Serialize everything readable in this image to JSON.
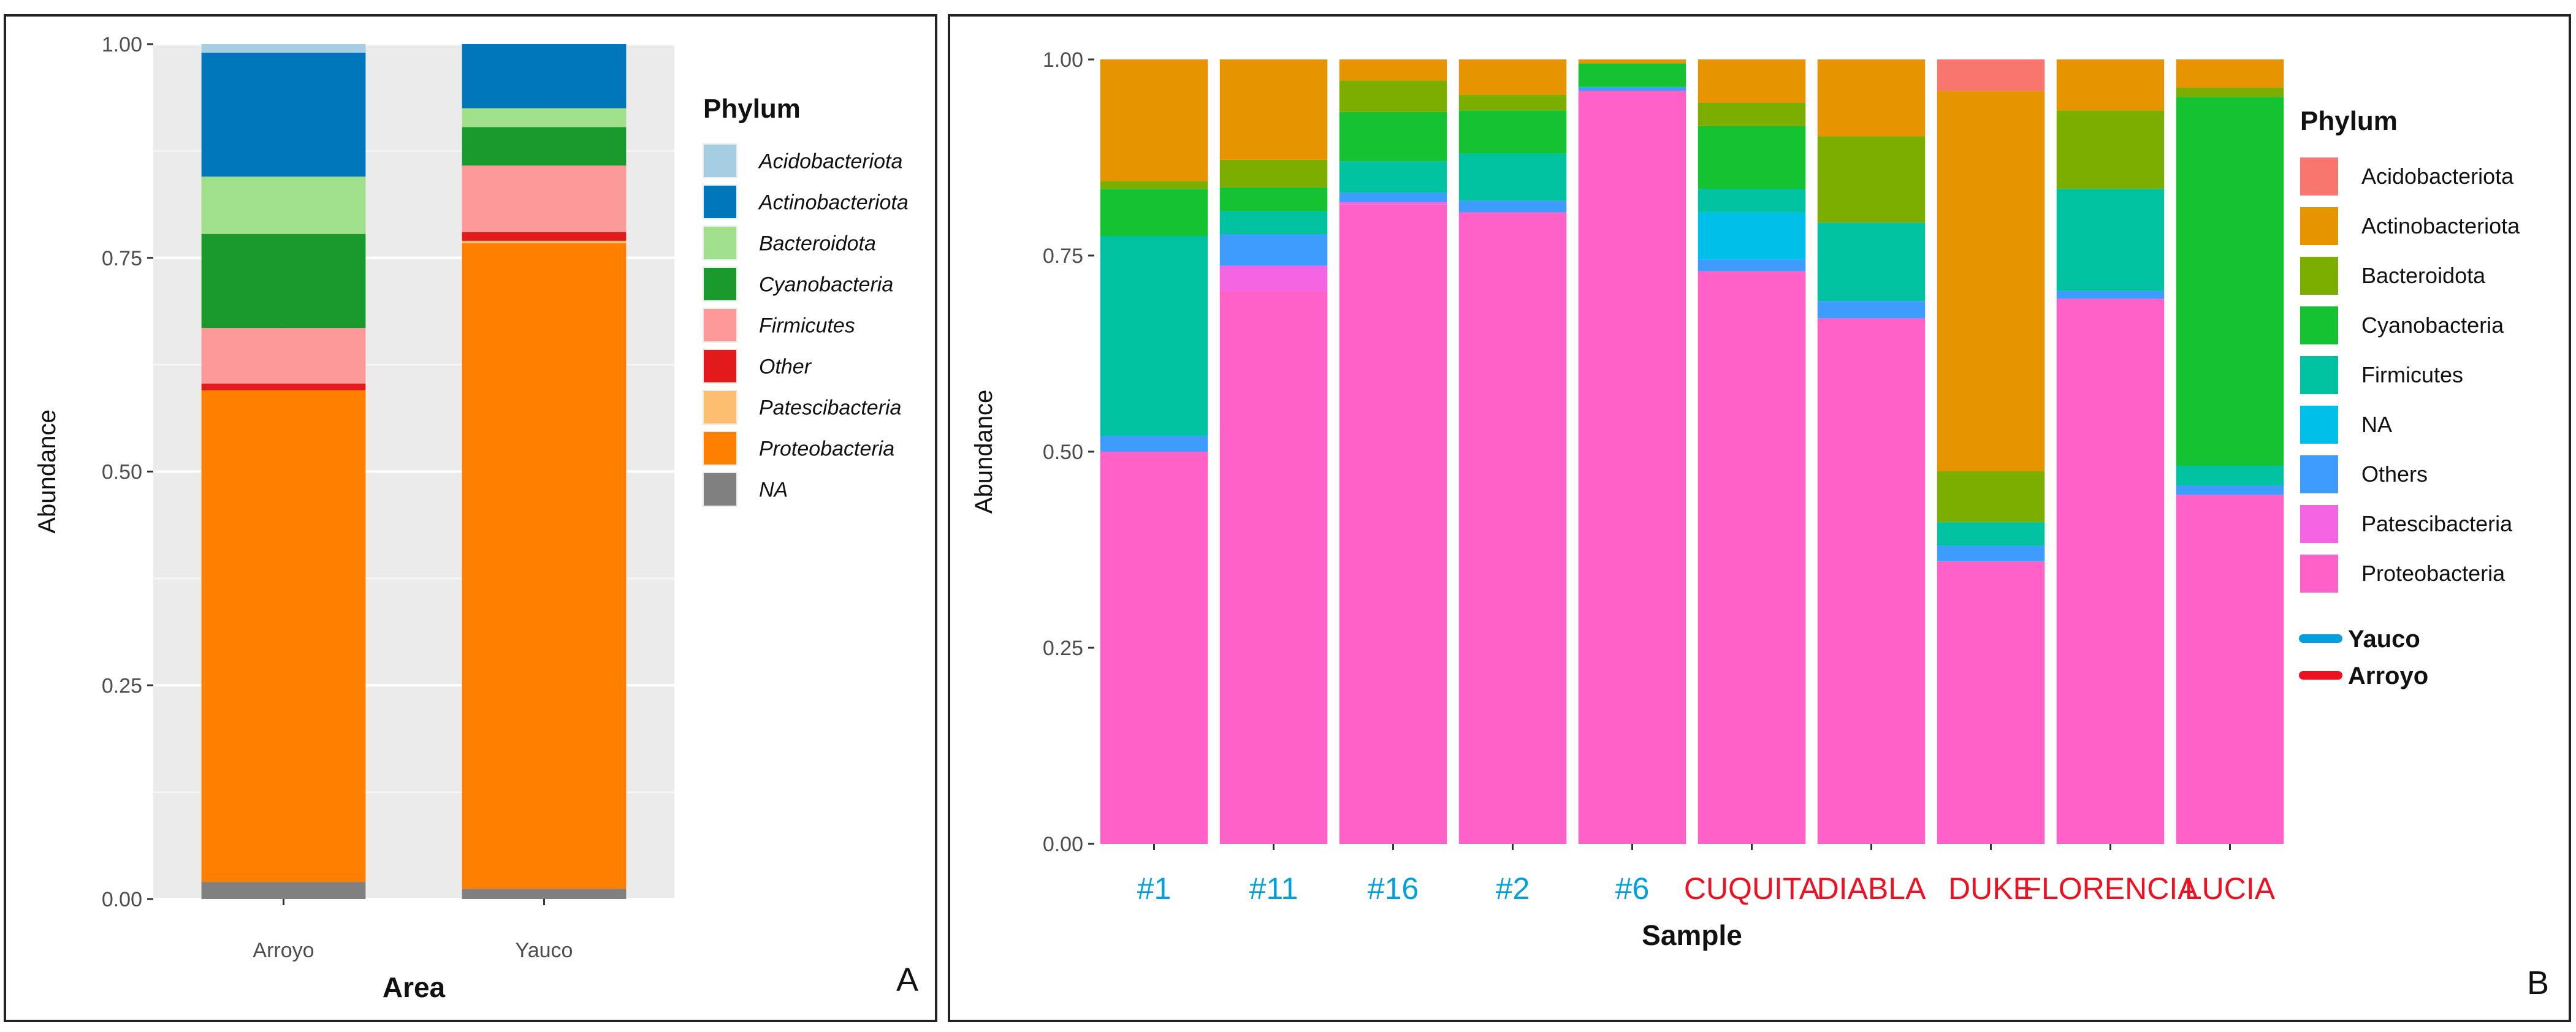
{
  "chart_data": [
    {
      "panel_label": "A",
      "type": "bar",
      "stacked": true,
      "xlabel": "Area",
      "ylabel": "Abundance",
      "ylim": [
        0,
        1
      ],
      "yticks": [
        "0.00",
        "0.25",
        "0.50",
        "0.75",
        "1.00"
      ],
      "categories": [
        "Arroyo",
        "Yauco"
      ],
      "legend_title": "Phylum",
      "legend": [
        "Acidobacteriota",
        "Actinobacteriota",
        "Bacteroidota",
        "Cyanobacteria",
        "Firmicutes",
        "Other",
        "Patescibacteria",
        "Proteobacteria",
        "NA"
      ],
      "series": [
        {
          "name": "NA",
          "color": "#808080",
          "values": [
            0.02,
            0.012
          ]
        },
        {
          "name": "Proteobacteria",
          "color": "#ff7f00",
          "values": [
            0.575,
            0.755
          ]
        },
        {
          "name": "Patescibacteria",
          "color": "#fdbf6f",
          "values": [
            0.0,
            0.003
          ]
        },
        {
          "name": "Other",
          "color": "#e31a1c",
          "values": [
            0.008,
            0.01
          ]
        },
        {
          "name": "Firmicutes",
          "color": "#fb9a99",
          "values": [
            0.065,
            0.078
          ]
        },
        {
          "name": "Cyanobacteria",
          "color": "#1a9a2c",
          "values": [
            0.11,
            0.045
          ]
        },
        {
          "name": "Bacteroidota",
          "color": "#a0e08a",
          "values": [
            0.067,
            0.022
          ]
        },
        {
          "name": "Actinobacteriota",
          "color": "#0077bb",
          "values": [
            0.145,
            0.075
          ]
        },
        {
          "name": "Acidobacteriota",
          "color": "#a6cee3",
          "values": [
            0.01,
            0.0
          ]
        }
      ]
    },
    {
      "panel_label": "B",
      "type": "bar",
      "stacked": true,
      "xlabel": "Sample",
      "ylabel": "Abundance",
      "ylim": [
        0,
        1
      ],
      "yticks": [
        "0.00",
        "0.25",
        "0.50",
        "0.75",
        "1.00"
      ],
      "categories": [
        "#1",
        "#11",
        "#16",
        "#2",
        "#6",
        "CUQUITA",
        "DIABLA",
        "DUKE",
        "FLORENCIA",
        "LUCIA"
      ],
      "category_groups": [
        "Yauco",
        "Yauco",
        "Yauco",
        "Yauco",
        "Yauco",
        "Arroyo",
        "Arroyo",
        "Arroyo",
        "Arroyo",
        "Arroyo"
      ],
      "legend_title": "Phylum",
      "legend": [
        "Acidobacteriota",
        "Actinobacteriota",
        "Bacteroidota",
        "Cyanobacteria",
        "Firmicutes",
        "NA",
        "Others",
        "Patescibacteria",
        "Proteobacteria"
      ],
      "group_legend": [
        {
          "name": "Yauco",
          "color": "#00a0e0"
        },
        {
          "name": "Arroyo",
          "color": "#ee1122"
        }
      ],
      "series": [
        {
          "name": "Proteobacteria",
          "color": "#ff61c9",
          "values": [
            0.5,
            0.705,
            0.815,
            0.805,
            0.96,
            0.73,
            0.67,
            0.36,
            0.695,
            0.445
          ]
        },
        {
          "name": "Patescibacteria",
          "color": "#f564e3",
          "values": [
            0.0,
            0.032,
            0.003,
            0.0,
            0.0,
            0.0,
            0.0,
            0.0,
            0.0,
            0.0
          ]
        },
        {
          "name": "Others",
          "color": "#3f9cff",
          "values": [
            0.02,
            0.04,
            0.012,
            0.015,
            0.005,
            0.015,
            0.022,
            0.02,
            0.01,
            0.012
          ]
        },
        {
          "name": "NA",
          "color": "#00bfe8",
          "values": [
            0.0,
            0.0,
            0.0,
            0.0,
            0.0,
            0.06,
            0.0,
            0.0,
            0.0,
            0.0
          ]
        },
        {
          "name": "Firmicutes",
          "color": "#00c2a0",
          "values": [
            0.255,
            0.03,
            0.04,
            0.06,
            0.0,
            0.03,
            0.1,
            0.03,
            0.13,
            0.025
          ]
        },
        {
          "name": "Cyanobacteria",
          "color": "#14c232",
          "values": [
            0.06,
            0.03,
            0.063,
            0.055,
            0.03,
            0.08,
            0.0,
            0.0,
            0.0,
            0.47
          ]
        },
        {
          "name": "Bacteroidota",
          "color": "#7cae00",
          "values": [
            0.01,
            0.035,
            0.04,
            0.02,
            0.0,
            0.03,
            0.11,
            0.065,
            0.1,
            0.012
          ]
        },
        {
          "name": "Actinobacteriota",
          "color": "#e69500",
          "values": [
            0.155,
            0.128,
            0.027,
            0.045,
            0.005,
            0.055,
            0.098,
            0.485,
            0.065,
            0.036
          ]
        },
        {
          "name": "Acidobacteriota",
          "color": "#f8766d",
          "values": [
            0.0,
            0.0,
            0.0,
            0.0,
            0.0,
            0.0,
            0.0,
            0.04,
            0.0,
            0.0
          ]
        }
      ]
    }
  ]
}
